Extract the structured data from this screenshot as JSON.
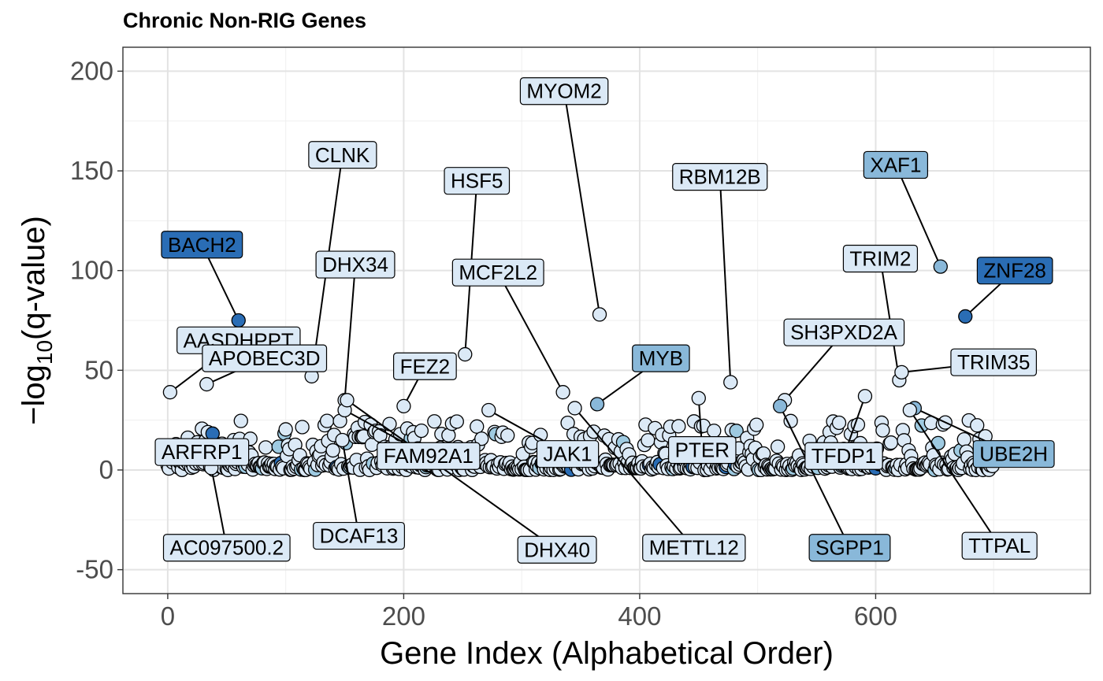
{
  "chart_data": {
    "type": "scatter",
    "title": "Chronic Non-RIG Genes",
    "xlabel": "Gene Index (Alphabetical Order)",
    "ylabel_prefix": "−log",
    "ylabel_subscript": "10",
    "ylabel_suffix": "(q-value)",
    "xlim": [
      -38,
      782
    ],
    "ylim": [
      -62,
      212
    ],
    "x_ticks": [
      0,
      200,
      400,
      600
    ],
    "y_ticks": [
      -50,
      0,
      50,
      100,
      150,
      200
    ],
    "x_tick_labels": [
      "0",
      "200",
      "400",
      "600"
    ],
    "y_tick_labels": [
      "-50",
      "0",
      "50",
      "100",
      "150",
      "200"
    ],
    "grid": true,
    "theme": "bw",
    "point_count": 700,
    "bulk_points_y_range": [
      0,
      25
    ],
    "fill_colors": {
      "pale": "#dbe9f6",
      "light": "#9ecae1",
      "medium": "#89b8d9",
      "dark": "#2a6db5"
    },
    "labeled_genes": [
      {
        "name": "BACH2",
        "x": 60,
        "y": 75,
        "shade": "dark",
        "label_x": 29,
        "label_y": 113
      },
      {
        "name": "AASDHPPT",
        "x": 2,
        "y": 39,
        "shade": "pale",
        "label_x": 60,
        "label_y": 65
      },
      {
        "name": "APOBEC3D",
        "x": 33,
        "y": 43,
        "shade": "pale",
        "label_x": 82,
        "label_y": 56
      },
      {
        "name": "ARFRP1",
        "x": 35,
        "y": 10,
        "shade": "pale",
        "label_x": 29,
        "label_y": 9
      },
      {
        "name": "AC097500.2",
        "x": 37,
        "y": 1,
        "shade": "pale",
        "label_x": 50,
        "label_y": -39
      },
      {
        "name": "CLNK",
        "x": 122,
        "y": 47,
        "shade": "pale",
        "label_x": 148,
        "label_y": 158
      },
      {
        "name": "DHX34",
        "x": 150,
        "y": 35,
        "shade": "pale",
        "label_x": 159,
        "label_y": 103
      },
      {
        "name": "DCAF13",
        "x": 148,
        "y": 15,
        "shade": "pale",
        "label_x": 162,
        "label_y": -33
      },
      {
        "name": "FAM92A1",
        "x": 150,
        "y": 30,
        "shade": "pale",
        "label_x": 221,
        "label_y": 7
      },
      {
        "name": "DHX40",
        "x": 152,
        "y": 35,
        "shade": "pale",
        "label_x": 330,
        "label_y": -40
      },
      {
        "name": "FEZ2",
        "x": 200,
        "y": 32,
        "shade": "pale",
        "label_x": 218,
        "label_y": 52
      },
      {
        "name": "HSF5",
        "x": 252,
        "y": 58,
        "shade": "pale",
        "label_x": 262,
        "label_y": 145
      },
      {
        "name": "MCF2L2",
        "x": 335,
        "y": 39,
        "shade": "pale",
        "label_x": 280,
        "label_y": 99
      },
      {
        "name": "JAK1",
        "x": 272,
        "y": 30,
        "shade": "pale",
        "label_x": 339,
        "label_y": 8
      },
      {
        "name": "MYOM2",
        "x": 366,
        "y": 78,
        "shade": "pale",
        "label_x": 336,
        "label_y": 190
      },
      {
        "name": "MYB",
        "x": 364,
        "y": 33,
        "shade": "medium",
        "label_x": 418,
        "label_y": 56
      },
      {
        "name": "METTL12",
        "x": 345,
        "y": 31,
        "shade": "pale",
        "label_x": 446,
        "label_y": -39
      },
      {
        "name": "RBM12B",
        "x": 477,
        "y": 44,
        "shade": "pale",
        "label_x": 468,
        "label_y": 147
      },
      {
        "name": "PTER",
        "x": 450,
        "y": 36,
        "shade": "pale",
        "label_x": 453,
        "label_y": 10
      },
      {
        "name": "SH3PXD2A",
        "x": 523,
        "y": 35,
        "shade": "pale",
        "label_x": 573,
        "label_y": 69
      },
      {
        "name": "TFDP1",
        "x": 591,
        "y": 37,
        "shade": "pale",
        "label_x": 573,
        "label_y": 7
      },
      {
        "name": "SGPP1",
        "x": 519,
        "y": 32,
        "shade": "medium",
        "label_x": 578,
        "label_y": -39
      },
      {
        "name": "TRIM2",
        "x": 620,
        "y": 45,
        "shade": "pale",
        "label_x": 604,
        "label_y": 106
      },
      {
        "name": "XAF1",
        "x": 655,
        "y": 102,
        "shade": "medium",
        "label_x": 617,
        "label_y": 153
      },
      {
        "name": "ZNF28",
        "x": 676,
        "y": 77,
        "shade": "dark",
        "label_x": 718,
        "label_y": 100
      },
      {
        "name": "TRIM35",
        "x": 622,
        "y": 49,
        "shade": "pale",
        "label_x": 700,
        "label_y": 54
      },
      {
        "name": "UBE2H",
        "x": 633,
        "y": 31,
        "shade": "medium",
        "label_x": 717,
        "label_y": 8
      },
      {
        "name": "TTPAL",
        "x": 629,
        "y": 30,
        "shade": "pale",
        "label_x": 705,
        "label_y": -38
      }
    ]
  }
}
